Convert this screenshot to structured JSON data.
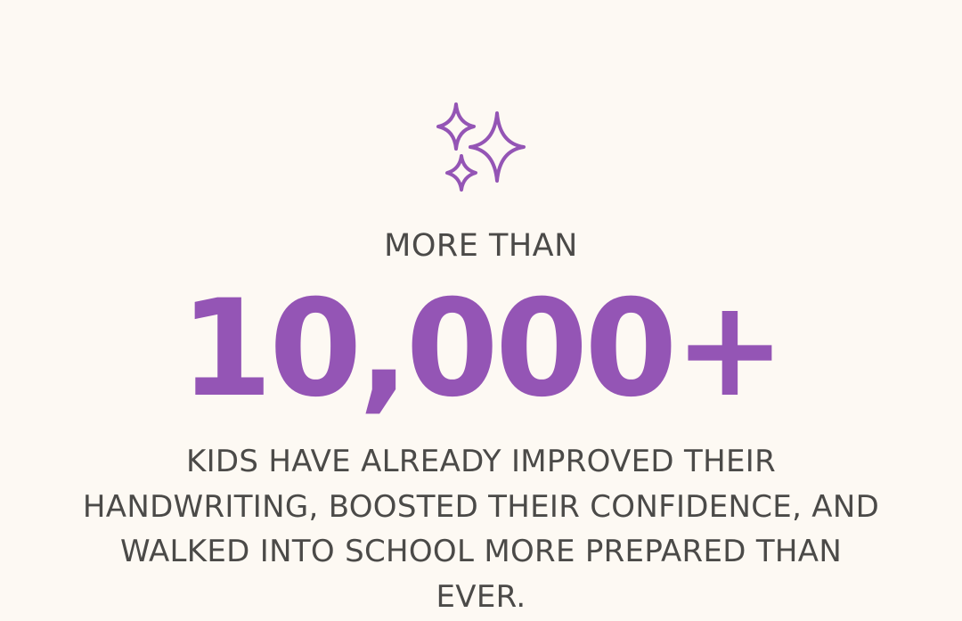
{
  "icon": "sparkles-icon",
  "accent_color": "#9455b5",
  "text_color": "#4b4a48",
  "eyebrow": "MORE THAN",
  "headline_number": "10,000+",
  "description": "KIDS HAVE ALREADY IMPROVED THEIR HANDWRITING, BOOSTED THEIR CONFIDENCE, AND WALKED INTO SCHOOL MORE PREPARED THAN EVER."
}
